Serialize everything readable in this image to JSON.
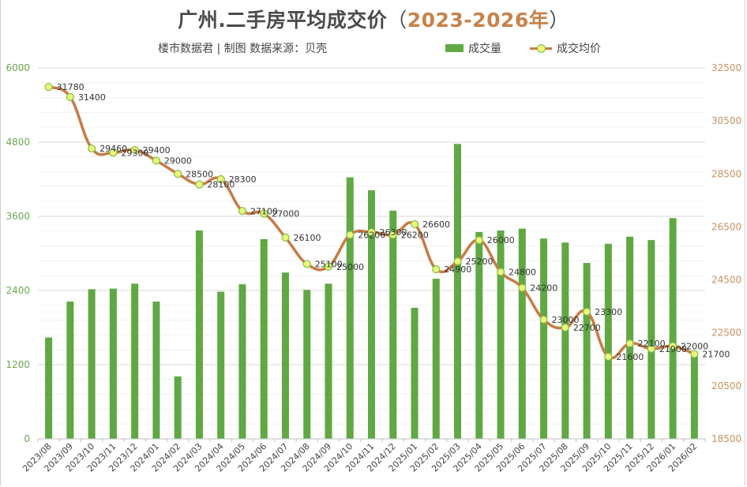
{
  "header": {
    "title_main": "广州.二手房平均成交价",
    "title_paren_open": "（",
    "title_years": "2023-2026年",
    "title_paren_close": "）",
    "subtitle": "楼市数据君 | 制图   数据来源：贝壳"
  },
  "legend": {
    "bar_label": "成交量",
    "line_label": "成交均价"
  },
  "colors": {
    "bar": "#5fa843",
    "line": "#c77b45",
    "marker_fill": "#e9f77a",
    "marker_stroke": "#7fbf4a",
    "left_axis": "#6aa84f",
    "right_axis": "#c8915f",
    "title_accent": "#c8824a"
  },
  "chart_data": {
    "type": "bar+line",
    "title": "广州.二手房平均成交价（2023-2026年）",
    "subtitle": "楼市数据君 | 制图 数据来源：贝壳",
    "xlabel": "",
    "ylabel_left": "成交量",
    "ylabel_right": "成交均价",
    "left_axis": {
      "min": 0,
      "max": 6000,
      "ticks": [
        0,
        1200,
        2400,
        3600,
        4800,
        6000
      ]
    },
    "right_axis": {
      "min": 18500,
      "max": 32500,
      "ticks": [
        18500,
        20500,
        22500,
        24500,
        26500,
        28500,
        30500,
        32500
      ]
    },
    "grid": true,
    "legend_position": "top-right",
    "categories": [
      "2023/08",
      "2023/09",
      "2023/10",
      "2023/11",
      "2023/12",
      "2024/01",
      "2024/02",
      "2024/03",
      "2024/04",
      "2024/05",
      "2024/06",
      "2024/07",
      "2024/08",
      "2024/09",
      "2024/10",
      "2024/11",
      "2024/12",
      "2025/01",
      "2025/02",
      "2025/03",
      "2025/04",
      "2025/05",
      "2025/06",
      "2025/07",
      "2025/08",
      "2025/09",
      "2025/10",
      "2025/11",
      "2025/12",
      "2026/01",
      "2026/02"
    ],
    "series": [
      {
        "name": "成交量",
        "type": "bar",
        "axis": "left",
        "values": [
          1640,
          2220,
          2420,
          2430,
          2510,
          2220,
          1010,
          3370,
          2380,
          2500,
          3230,
          2690,
          2410,
          2510,
          4230,
          4020,
          3690,
          2120,
          2590,
          4770,
          3345,
          3370,
          3400,
          3240,
          3175,
          2845,
          3155,
          3270,
          3215,
          3570,
          1375
        ]
      },
      {
        "name": "成交均价",
        "type": "line",
        "axis": "right",
        "values": [
          31780,
          31400,
          29460,
          29300,
          29400,
          29000,
          28500,
          28100,
          28300,
          27100,
          27000,
          26100,
          25100,
          25000,
          26200,
          26300,
          26200,
          26600,
          24900,
          25200,
          26000,
          24800,
          24200,
          23000,
          22700,
          23300,
          21600,
          22100,
          21900,
          22000,
          21700
        ]
      }
    ]
  }
}
